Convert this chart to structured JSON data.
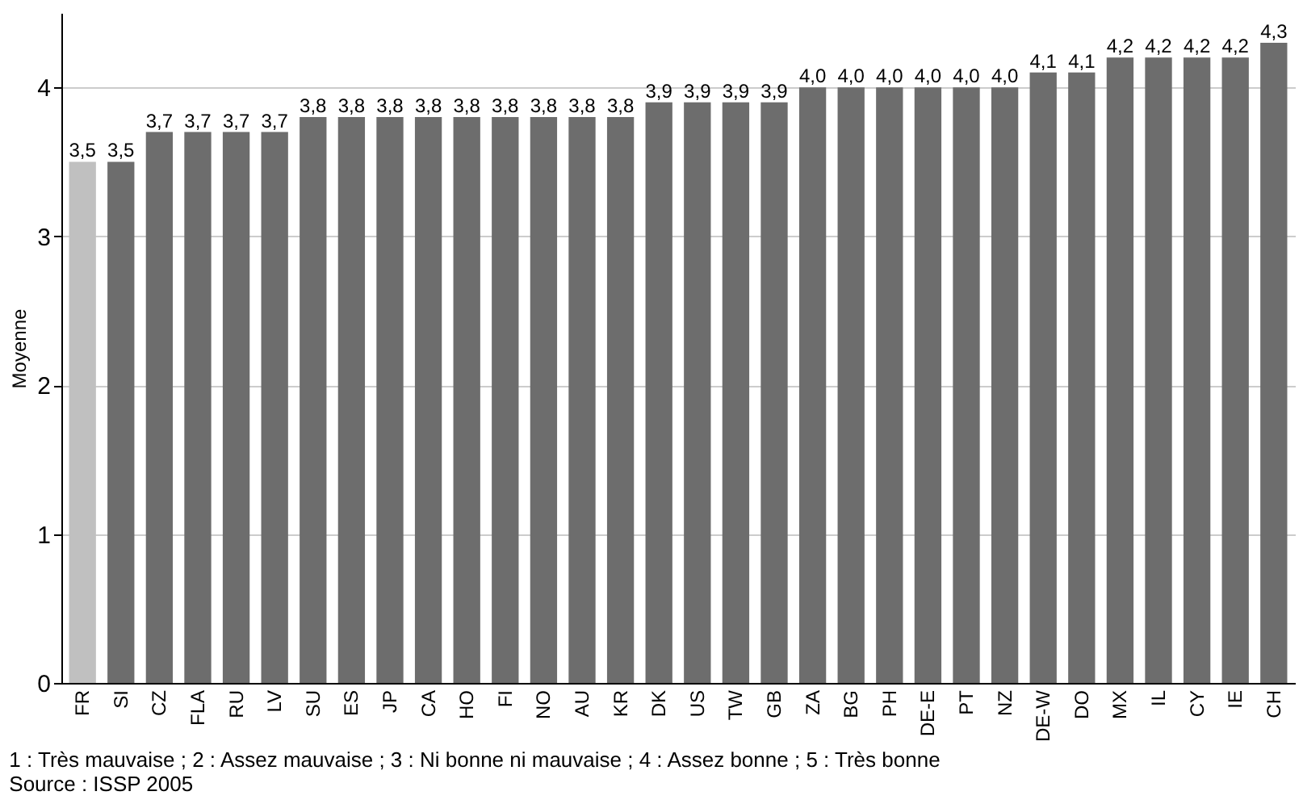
{
  "chart_data": {
    "type": "bar",
    "ylabel": "Moyenne",
    "categories": [
      "FR",
      "SI",
      "CZ",
      "FLA",
      "RU",
      "LV",
      "SU",
      "ES",
      "JP",
      "CA",
      "HO",
      "FI",
      "NO",
      "AU",
      "KR",
      "DK",
      "US",
      "TW",
      "GB",
      "ZA",
      "BG",
      "PH",
      "DE-E",
      "PT",
      "NZ",
      "DE-W",
      "DO",
      "MX",
      "IL",
      "CY",
      "IE",
      "CH"
    ],
    "values": [
      3.5,
      3.5,
      3.7,
      3.7,
      3.7,
      3.7,
      3.8,
      3.8,
      3.8,
      3.8,
      3.8,
      3.8,
      3.8,
      3.8,
      3.8,
      3.9,
      3.9,
      3.9,
      3.9,
      4.0,
      4.0,
      4.0,
      4.0,
      4.0,
      4.0,
      4.1,
      4.1,
      4.2,
      4.2,
      4.2,
      4.2,
      4.3
    ],
    "colors": [
      "#c0c0c0",
      "#6d6d6d",
      "#6d6d6d",
      "#6d6d6d",
      "#6d6d6d",
      "#6d6d6d",
      "#6d6d6d",
      "#6d6d6d",
      "#6d6d6d",
      "#6d6d6d",
      "#6d6d6d",
      "#6d6d6d",
      "#6d6d6d",
      "#6d6d6d",
      "#6d6d6d",
      "#6d6d6d",
      "#6d6d6d",
      "#6d6d6d",
      "#6d6d6d",
      "#6d6d6d",
      "#6d6d6d",
      "#6d6d6d",
      "#6d6d6d",
      "#6d6d6d",
      "#6d6d6d",
      "#6d6d6d",
      "#6d6d6d",
      "#6d6d6d",
      "#6d6d6d",
      "#6d6d6d",
      "#6d6d6d",
      "#6d6d6d"
    ],
    "ylim": [
      0,
      4.5
    ],
    "yticks": [
      0,
      1,
      2,
      3,
      4
    ],
    "value_labels": [
      "3,5",
      "3,5",
      "3,7",
      "3,7",
      "3,7",
      "3,7",
      "3,8",
      "3,8",
      "3,8",
      "3,8",
      "3,8",
      "3,8",
      "3,8",
      "3,8",
      "3,8",
      "3,9",
      "3,9",
      "3,9",
      "3,9",
      "4,0",
      "4,0",
      "4,0",
      "4,0",
      "4,0",
      "4,0",
      "4,1",
      "4,1",
      "4,2",
      "4,2",
      "4,2",
      "4,2",
      "4,3"
    ],
    "grid": "y",
    "annotations": [
      "1 : Très mauvaise ; 2 : Assez mauvaise ; 3 : Ni bonne ni mauvaise ; 4 : Assez bonne ;  5 : Très bonne",
      "Source : ISSP 2005"
    ]
  }
}
